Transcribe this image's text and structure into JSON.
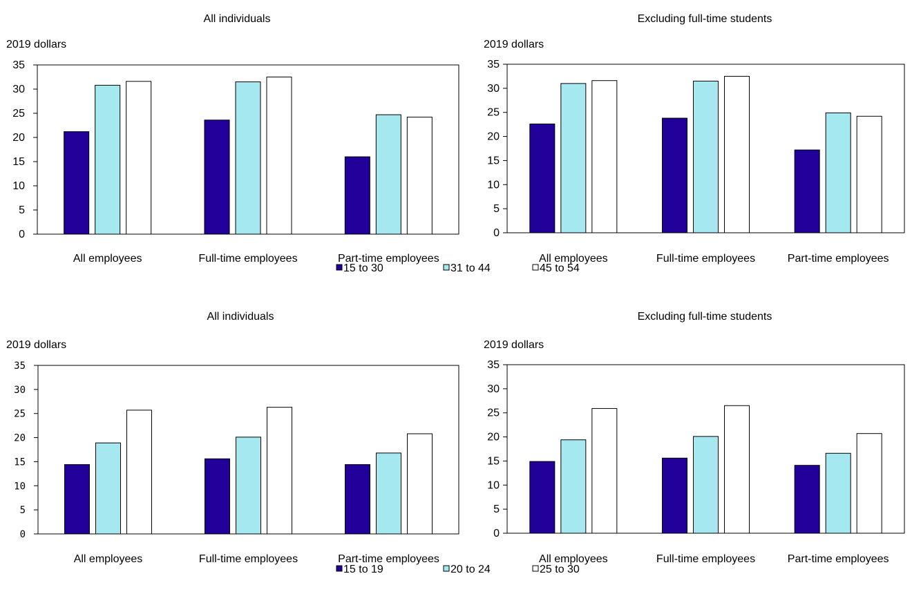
{
  "chart_data": [
    {
      "type": "bar",
      "title": "All individuals",
      "ylabel": "2019 dollars",
      "ylim": [
        0,
        35
      ],
      "yticks": [
        0,
        5,
        10,
        15,
        20,
        25,
        30,
        35
      ],
      "grid": false,
      "categories": [
        "All employees",
        "Full-time employees",
        "Part-time employees"
      ],
      "series": [
        {
          "name": "15 to 30",
          "color": "#22009a",
          "values": [
            21.2,
            23.6,
            16.0
          ]
        },
        {
          "name": "31 to 44",
          "color": "#a6e8f0",
          "values": [
            30.8,
            31.5,
            24.7
          ]
        },
        {
          "name": "45 to 54",
          "color": "#ffffff",
          "values": [
            31.6,
            32.5,
            24.2
          ]
        }
      ]
    },
    {
      "type": "bar",
      "title": "Excluding full-time students",
      "ylabel": "2019 dollars",
      "ylim": [
        0,
        35
      ],
      "yticks": [
        0,
        5,
        10,
        15,
        20,
        25,
        30,
        35
      ],
      "grid": false,
      "categories": [
        "All employees",
        "Full-time employees",
        "Part-time employees"
      ],
      "series": [
        {
          "name": "15 to 30",
          "color": "#22009a",
          "values": [
            22.6,
            23.8,
            17.2
          ]
        },
        {
          "name": "31 to 44",
          "color": "#a6e8f0",
          "values": [
            31.0,
            31.5,
            24.9
          ]
        },
        {
          "name": "45 to 54",
          "color": "#ffffff",
          "values": [
            31.6,
            32.5,
            24.2
          ]
        }
      ]
    },
    {
      "type": "bar",
      "title": "All individuals",
      "ylabel": "2019 dollars",
      "ylim": [
        0,
        35
      ],
      "yticks": [
        0,
        5,
        10,
        15,
        20,
        25,
        30,
        35
      ],
      "grid": false,
      "categories": [
        "All employees",
        "Full-time employees",
        "Part-time employees"
      ],
      "series": [
        {
          "name": "15 to 19",
          "color": "#22009a",
          "values": [
            14.4,
            15.6,
            14.4
          ]
        },
        {
          "name": "20 to 24",
          "color": "#a6e8f0",
          "values": [
            18.9,
            20.1,
            16.8
          ]
        },
        {
          "name": "25 to 30",
          "color": "#ffffff",
          "values": [
            25.7,
            26.3,
            20.8
          ]
        }
      ]
    },
    {
      "type": "bar",
      "title": "Excluding full-time students",
      "ylabel": "2019 dollars",
      "ylim": [
        0,
        35
      ],
      "yticks": [
        0,
        5,
        10,
        15,
        20,
        25,
        30,
        35
      ],
      "grid": false,
      "categories": [
        "All employees",
        "Full-time employees",
        "Part-time employees"
      ],
      "series": [
        {
          "name": "15 to 19",
          "color": "#22009a",
          "values": [
            14.9,
            15.6,
            14.1
          ]
        },
        {
          "name": "20 to 24",
          "color": "#a6e8f0",
          "values": [
            19.4,
            20.1,
            16.6
          ]
        },
        {
          "name": "25 to 30",
          "color": "#ffffff",
          "values": [
            25.9,
            26.5,
            20.7
          ]
        }
      ]
    }
  ],
  "legends": [
    {
      "entries": [
        "15 to 30",
        "31 to 44",
        "45 to 54"
      ]
    },
    {
      "entries": [
        "15 to 19",
        "20 to 24",
        "25 to 30"
      ]
    }
  ]
}
